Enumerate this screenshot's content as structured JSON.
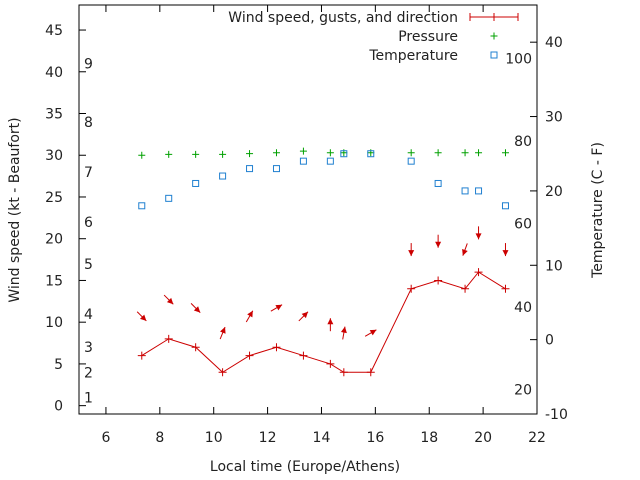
{
  "chart_data": {
    "type": "line",
    "xlabel": "Local time (Europe/Athens)",
    "ylabel": "Wind speed (kt - Beaufort)",
    "y2label": "Temperature (C - F)",
    "xlim": [
      5,
      22
    ],
    "ylim": [
      -1,
      48
    ],
    "y2lim": [
      -10,
      45
    ],
    "x_ticks": [
      6,
      8,
      10,
      12,
      14,
      16,
      18,
      20,
      22
    ],
    "y_ticks": [
      0,
      5,
      10,
      15,
      20,
      25,
      30,
      35,
      40,
      45
    ],
    "y2_ticks": [
      -10,
      0,
      10,
      20,
      30,
      40
    ],
    "beaufort_labels": [
      {
        "label": "1",
        "y": 1
      },
      {
        "label": "2",
        "y": 4
      },
      {
        "label": "3",
        "y": 7
      },
      {
        "label": "4",
        "y": 11
      },
      {
        "label": "5",
        "y": 17
      },
      {
        "label": "6",
        "y": 22
      },
      {
        "label": "7",
        "y": 28
      },
      {
        "label": "8",
        "y": 34
      },
      {
        "label": "9",
        "y": 41
      }
    ],
    "fahrenheit_labels": [
      {
        "label": "20",
        "y2": -6.7
      },
      {
        "label": "40",
        "y2": 4.4
      },
      {
        "label": "60",
        "y2": 15.6
      },
      {
        "label": "80",
        "y2": 26.7
      },
      {
        "label": "100",
        "y2": 37.8
      }
    ],
    "legend_position": "top-right",
    "series": [
      {
        "name": "Wind speed, gusts, and direction",
        "color": "#cc0000",
        "marker": "plus",
        "x": [
          7.33,
          8.33,
          9.33,
          10.33,
          11.33,
          12.33,
          13.33,
          14.33,
          14.83,
          15.83,
          17.33,
          18.33,
          19.33,
          19.83,
          20.83
        ],
        "values": [
          6,
          8,
          7,
          4,
          6,
          7,
          6,
          5,
          4,
          4,
          14,
          15,
          14,
          16,
          14
        ],
        "direction_deg": [
          135,
          135,
          135,
          22,
          30,
          60,
          45,
          0,
          10,
          60,
          180,
          180,
          200,
          180,
          180
        ]
      },
      {
        "name": "Pressure",
        "color": "#00a000",
        "marker": "plus",
        "x": [
          7.33,
          8.33,
          9.33,
          10.33,
          11.33,
          12.33,
          13.33,
          14.33,
          14.83,
          15.83,
          17.33,
          18.33,
          19.33,
          19.83,
          20.83
        ],
        "values": [
          30,
          30.1,
          30.1,
          30.1,
          30.2,
          30.3,
          30.5,
          30.3,
          30.3,
          30.3,
          30.3,
          30.3,
          30.3,
          30.3,
          30.3
        ]
      },
      {
        "name": "Temperature",
        "color": "#2080d0",
        "marker": "square",
        "axis": "y2",
        "x": [
          7.33,
          8.33,
          9.33,
          10.33,
          11.33,
          12.33,
          13.33,
          14.33,
          14.83,
          15.83,
          17.33,
          18.33,
          19.33,
          19.83,
          20.83
        ],
        "values": [
          18,
          19,
          21,
          22,
          23,
          23,
          24,
          24,
          25,
          25,
          24,
          21,
          20,
          20,
          18
        ]
      }
    ]
  }
}
